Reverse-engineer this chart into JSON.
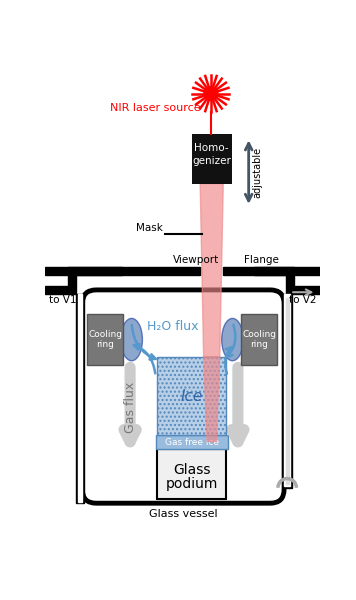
{
  "fig_width": 3.56,
  "fig_height": 6.0,
  "bg_color": "#ffffff",
  "laser_color": "#ff0000",
  "beam_color": "#f08888",
  "beam_alpha": 0.65,
  "ice_color": "#b8cfe8",
  "gas_free_ice_color": "#99bbdd",
  "gas_free_ice_text_color": "#ffffff",
  "podium_color": "#f0f0f0",
  "cooling_ring_color": "#777777",
  "cooling_ring_blue": "#6688bb",
  "h2o_arrow_color": "#5599cc",
  "homogenizer_color": "#111111",
  "adjustable_arrow_color": "#445566",
  "gas_flux_arrow_color": "#cccccc",
  "right_recirc_color": "#bbbbbb",
  "mask_label": "Mask",
  "viewport_label": "Viewport",
  "flange_label": "Flange",
  "to_v1_label": "to V1",
  "to_v2_label": "to V2",
  "nir_label": "NIR laser source",
  "adjustable_label": "adjustable",
  "h2o_flux_label": "H₂O flux",
  "gas_flux_label": "Gas flux",
  "ice_label": "Ice",
  "gas_free_ice_label": "Gas free ice",
  "podium_label_1": "Glass",
  "podium_label_2": "podium",
  "vessel_label": "Glass vessel"
}
